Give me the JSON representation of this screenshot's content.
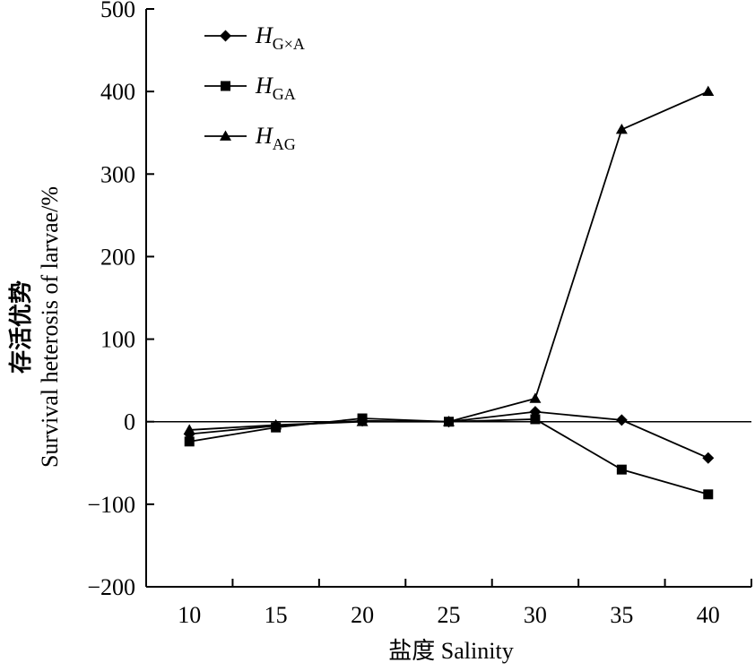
{
  "chart_data": {
    "type": "line",
    "title": "",
    "xlabel": "盐度 Salinity",
    "ylabel_cn": "存活优势",
    "ylabel_en": "Survival heterosis of larvae/%",
    "ylim": [
      -200,
      500
    ],
    "yticks": [
      -200,
      -100,
      0,
      100,
      200,
      300,
      400,
      500
    ],
    "ytick_labels": [
      "−200",
      "−100",
      "0",
      "100",
      "200",
      "300",
      "400",
      "500"
    ],
    "categories": [
      "10",
      "15",
      "20",
      "25",
      "30",
      "35",
      "40"
    ],
    "grid": false,
    "legend_position": "top-left",
    "series": [
      {
        "name_main": "H",
        "name_sub": "G×A",
        "marker": "diamond",
        "values": [
          -15,
          -5,
          1,
          0,
          12,
          2,
          -44
        ]
      },
      {
        "name_main": "H",
        "name_sub": "GA",
        "marker": "square",
        "values": [
          -24,
          -7,
          4,
          0,
          3,
          -58,
          -88
        ]
      },
      {
        "name_main": "H",
        "name_sub": "AG",
        "marker": "triangle",
        "values": [
          -10,
          -4,
          0,
          0,
          28,
          354,
          400
        ]
      }
    ]
  }
}
